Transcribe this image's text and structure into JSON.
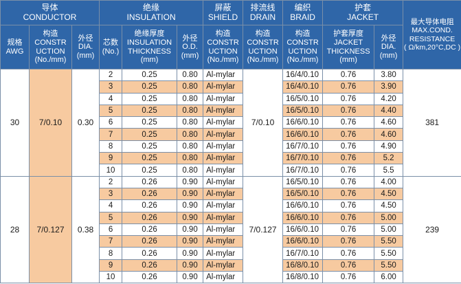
{
  "header": {
    "conductor": "导体\nCONDUCTOR",
    "insulation": "绝缘\nINSULATION",
    "shield": "屏蔽\nSHIELD",
    "drain": "排流线\nDRAIN",
    "braid": "编织\nBRAID",
    "jacket": "护套\nJACKET",
    "resistance": "最大导体电阻\nMAX.COND.\nRESISTANCE\n( Ω/km,20°C,DC )",
    "awg": "规格\nAWG",
    "cond_construction": "构造\nCONSTR\nUCTION\n(No./mm)",
    "cond_dia": "外径\nDIA.\n(mm)",
    "cores": "芯数\n(No.)",
    "ins_thickness": "绝缘厚度\nINSULATION\nTHICKNESS\n(mm)",
    "ins_od": "外径\nO.D.\n(mm)",
    "shield_construction": "构造\nCONSTR\nUCTION\n(No./mm)",
    "drain_construction": "构造\nCONSTR\nUCTION\n(No./mm)",
    "braid_construction": "构造\nCONSTR\nUCTION\n(No./mm)",
    "jacket_thickness": "护套厚度\nJACKET\nTHICKNESS\n(mm)",
    "jacket_dia": "外径\nDIA.\n(mm)"
  },
  "groups": [
    {
      "awg": "30",
      "construction": "7/0.10",
      "dia": "0.30",
      "drain": "7/0.10",
      "resistance": "381",
      "rows": [
        {
          "cores": "2",
          "ins": "0.25",
          "od": "0.80",
          "shield": "Al-mylar",
          "braid": "16/4/0.10",
          "jt": "0.76",
          "jd": "3.80"
        },
        {
          "cores": "3",
          "ins": "0.25",
          "od": "0.80",
          "shield": "Al-mylar",
          "braid": "16/4/0.10",
          "jt": "0.76",
          "jd": "3.90"
        },
        {
          "cores": "4",
          "ins": "0.25",
          "od": "0.80",
          "shield": "Al-mylar",
          "braid": "16/5/0.10",
          "jt": "0.76",
          "jd": "4.20"
        },
        {
          "cores": "5",
          "ins": "0.25",
          "od": "0.80",
          "shield": "Al-mylar",
          "braid": "16/5/0.10",
          "jt": "0.76",
          "jd": "4.40"
        },
        {
          "cores": "6",
          "ins": "0.25",
          "od": "0.80",
          "shield": "Al-mylar",
          "braid": "16/6/0.10",
          "jt": "0.76",
          "jd": "4.60"
        },
        {
          "cores": "7",
          "ins": "0.25",
          "od": "0.80",
          "shield": "Al-mylar",
          "braid": "16/6/0.10",
          "jt": "0.76",
          "jd": "4.60"
        },
        {
          "cores": "8",
          "ins": "0.25",
          "od": "0.80",
          "shield": "Al-mylar",
          "braid": "16/7/0.10",
          "jt": "0.76",
          "jd": "4.90"
        },
        {
          "cores": "9",
          "ins": "0.25",
          "od": "0.80",
          "shield": "Al-mylar",
          "braid": "16/7/0.10",
          "jt": "0.76",
          "jd": "5.2"
        },
        {
          "cores": "10",
          "ins": "0.25",
          "od": "0.80",
          "shield": "Al-mylar",
          "braid": "16/7/0.10",
          "jt": "0.76",
          "jd": "5.5"
        }
      ]
    },
    {
      "awg": "28",
      "construction": "7/0.127",
      "dia": "0.38",
      "drain": "7/0.127",
      "resistance": "239",
      "rows": [
        {
          "cores": "2",
          "ins": "0.26",
          "od": "0.90",
          "shield": "Al-mylar",
          "braid": "16/5/0.10",
          "jt": "0.76",
          "jd": "4.00"
        },
        {
          "cores": "3",
          "ins": "0.26",
          "od": "0.90",
          "shield": "Al-mylar",
          "braid": "16/5/0.10",
          "jt": "0.76",
          "jd": "4.50"
        },
        {
          "cores": "4",
          "ins": "0.26",
          "od": "0.90",
          "shield": "Al-mylar",
          "braid": "16/6/0.10",
          "jt": "0.76",
          "jd": "4.50"
        },
        {
          "cores": "5",
          "ins": "0.26",
          "od": "0.90",
          "shield": "Al-mylar",
          "braid": "16/6/0.10",
          "jt": "0.76",
          "jd": "5.00"
        },
        {
          "cores": "6",
          "ins": "0.26",
          "od": "0.90",
          "shield": "Al-mylar",
          "braid": "16/6/0.10",
          "jt": "0.76",
          "jd": "5.00"
        },
        {
          "cores": "7",
          "ins": "0.26",
          "od": "0.90",
          "shield": "Al-mylar",
          "braid": "16/6/0.10",
          "jt": "0.76",
          "jd": "5.50"
        },
        {
          "cores": "8",
          "ins": "0.26",
          "od": "0.90",
          "shield": "Al-mylar",
          "braid": "16/7/0.10",
          "jt": "0.76",
          "jd": "5.50"
        },
        {
          "cores": "9",
          "ins": "0.26",
          "od": "0.90",
          "shield": "Al-mylar",
          "braid": "16/8/0.10",
          "jt": "0.76",
          "jd": "5.50"
        },
        {
          "cores": "10",
          "ins": "0.26",
          "od": "0.90",
          "shield": "Al-mylar",
          "braid": "16/8/0.10",
          "jt": "0.76",
          "jd": "6.00"
        }
      ]
    }
  ],
  "colors": {
    "header_bg": "#2f66a8",
    "highlight_bg": "#f7caa0",
    "grid": "#7a8fa8"
  }
}
